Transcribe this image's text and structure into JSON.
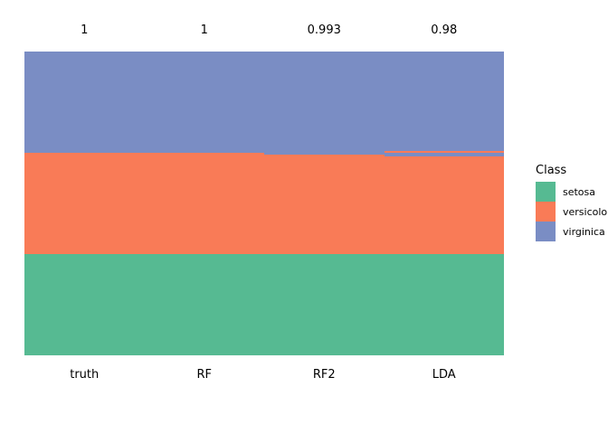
{
  "figure": {
    "background": "#ffffff"
  },
  "chart_data": {
    "type": "heatmap",
    "title": "",
    "xlabel": "",
    "ylabel": "",
    "grid": false,
    "legend_position": "right",
    "description": "Per-sample iris class predictions: each column stacks 150 samples (top to bottom: virginica, versicolor, setosa by truth order) colored by assigned class; number above each column is its accuracy.",
    "n_samples": 150,
    "columns": [
      {
        "name": "truth",
        "accuracy_label": "1",
        "segments": [
          [
            "virginica",
            50
          ],
          [
            "versicolor",
            50
          ],
          [
            "setosa",
            50
          ]
        ]
      },
      {
        "name": "RF",
        "accuracy_label": "1",
        "segments": [
          [
            "virginica",
            50
          ],
          [
            "versicolor",
            50
          ],
          [
            "setosa",
            50
          ]
        ]
      },
      {
        "name": "RF2",
        "accuracy_label": "0.993",
        "segments": [
          [
            "virginica",
            51
          ],
          [
            "versicolor",
            49
          ],
          [
            "setosa",
            50
          ]
        ]
      },
      {
        "name": "LDA",
        "accuracy_label": "0.98",
        "segments": [
          [
            "virginica",
            49
          ],
          [
            "versicolor",
            1
          ],
          [
            "virginica",
            2
          ],
          [
            "versicolor",
            48
          ],
          [
            "setosa",
            50
          ]
        ]
      }
    ],
    "class_colors": {
      "setosa": "#56BA92",
      "versicolor": "#F97B57",
      "virginica": "#7A8DC4"
    },
    "legend": {
      "title": "Class",
      "entries": [
        {
          "label": "setosa",
          "color": "#56BA92"
        },
        {
          "label": "versicolor",
          "color": "#F97B57"
        },
        {
          "label": "virginica",
          "color": "#7A8DC4"
        }
      ]
    }
  }
}
